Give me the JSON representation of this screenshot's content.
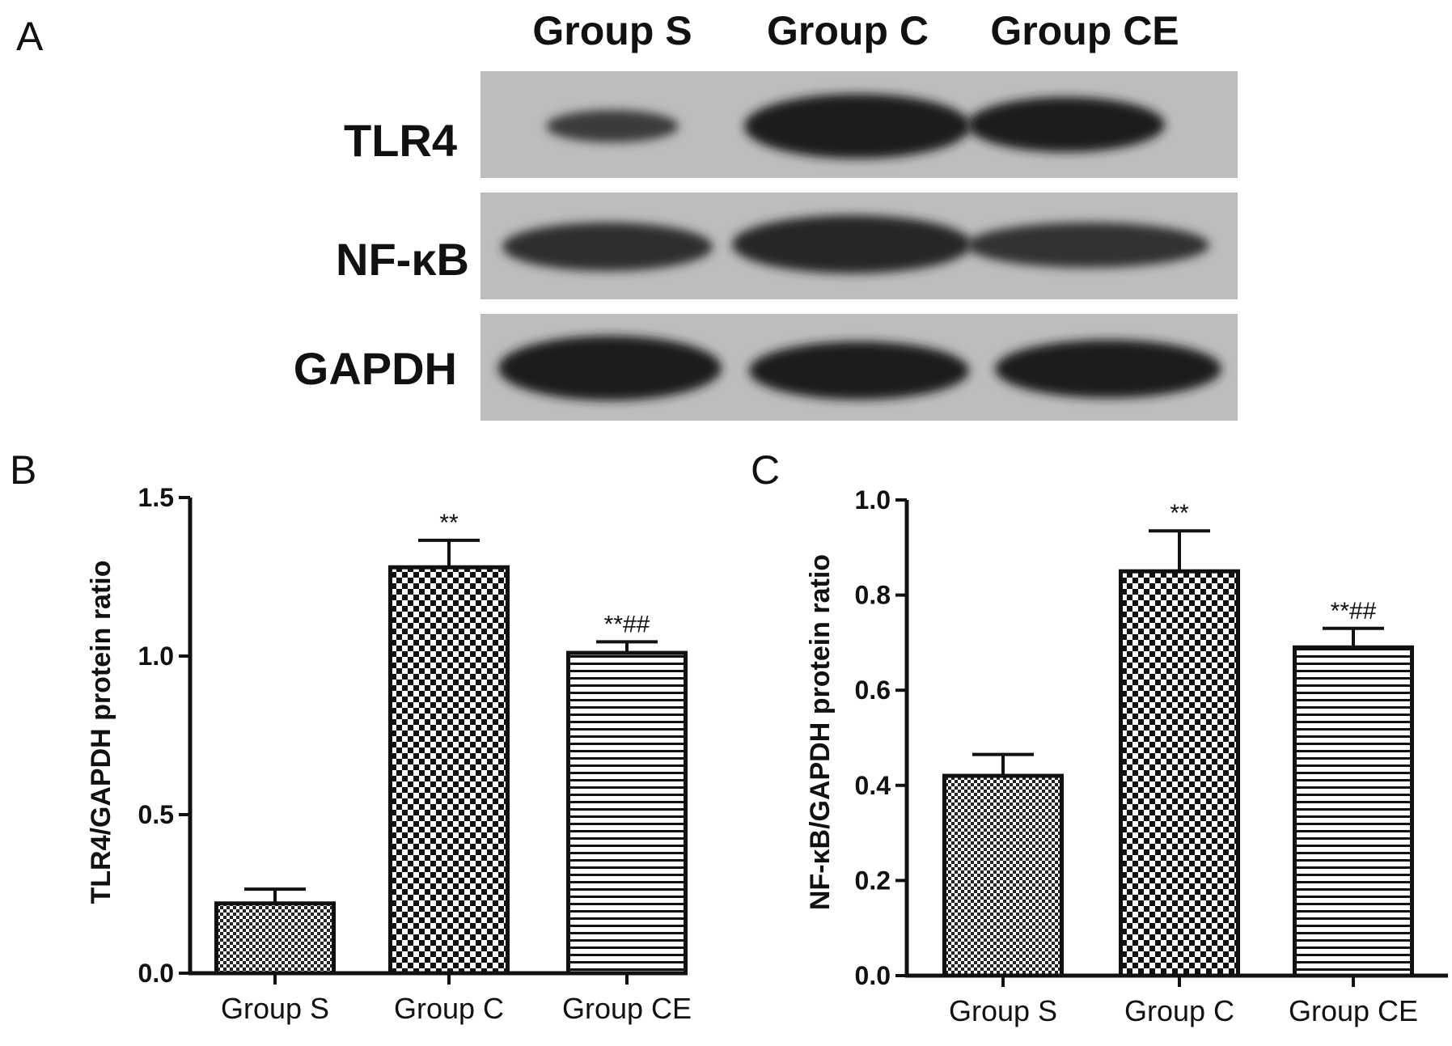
{
  "panels": {
    "a": "A",
    "b": "B",
    "c": "C"
  },
  "blot": {
    "lanes": [
      "Group S",
      "Group C",
      "Group CE"
    ],
    "rows": [
      {
        "protein": "TLR4",
        "intensity": [
          0.45,
          1.0,
          0.85
        ]
      },
      {
        "protein": "NF-κB",
        "intensity": [
          0.75,
          0.85,
          0.6
        ]
      },
      {
        "protein": "GAPDH",
        "intensity": [
          1.0,
          0.92,
          0.92
        ]
      }
    ]
  },
  "chart_data": [
    {
      "type": "bar",
      "panel": "B",
      "categories": [
        "Group S",
        "Group C",
        "Group CE"
      ],
      "values": [
        0.22,
        1.28,
        1.01
      ],
      "errors": [
        0.045,
        0.085,
        0.035
      ],
      "annotations": [
        "",
        "**",
        "**##"
      ],
      "patterns": [
        "fine-check",
        "coarse-check",
        "horizontal-lines"
      ],
      "ylabel": "TLR4/GAPDH protein ratio",
      "ylim": [
        0,
        1.5
      ],
      "yticks": [
        "0.0",
        "0.5",
        "1.0",
        "1.5"
      ],
      "ytick_values": [
        0,
        0.5,
        1.0,
        1.5
      ],
      "xlabel": "",
      "grid": false
    },
    {
      "type": "bar",
      "panel": "C",
      "categories": [
        "Group S",
        "Group C",
        "Group CE"
      ],
      "values": [
        0.42,
        0.85,
        0.69
      ],
      "errors": [
        0.045,
        0.085,
        0.04
      ],
      "annotations": [
        "",
        "**",
        "**##"
      ],
      "patterns": [
        "fine-check",
        "coarse-check",
        "horizontal-lines"
      ],
      "ylabel": "NF-κB/GAPDH protein ratio",
      "ylim": [
        0,
        1.0
      ],
      "yticks": [
        "0.0",
        "0.2",
        "0.4",
        "0.6",
        "0.8",
        "1.0"
      ],
      "ytick_values": [
        0,
        0.2,
        0.4,
        0.6,
        0.8,
        1.0
      ],
      "xlabel": "",
      "grid": false
    }
  ]
}
